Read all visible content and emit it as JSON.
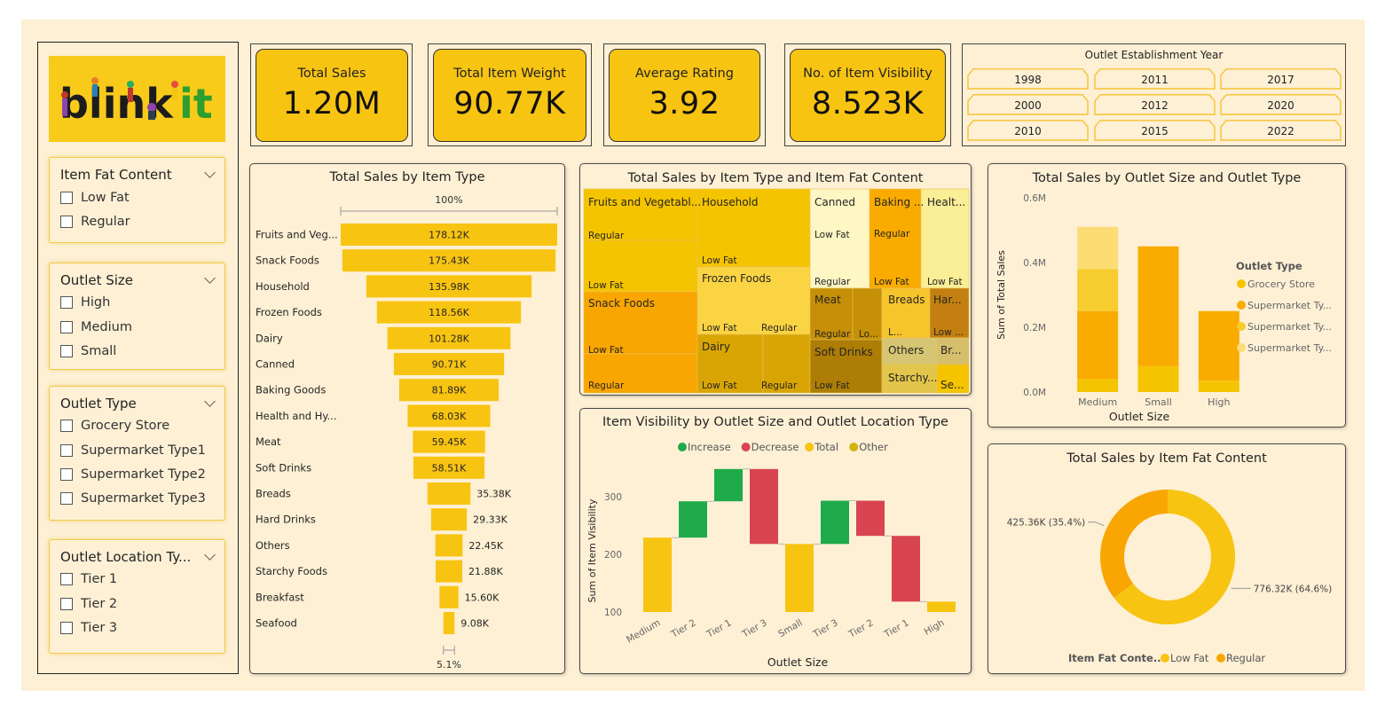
{
  "logo": {
    "text_left": "blink",
    "text_right": "it"
  },
  "filters": [
    {
      "title": "Item Fat Content",
      "options": [
        "Low Fat",
        "Regular"
      ]
    },
    {
      "title": "Outlet Size",
      "options": [
        "High",
        "Medium",
        "Small"
      ]
    },
    {
      "title": "Outlet Type",
      "options": [
        "Grocery Store",
        "Supermarket Type1",
        "Supermarket Type2",
        "Supermarket Type3"
      ]
    },
    {
      "title": "Outlet Location Ty...",
      "options": [
        "Tier 1",
        "Tier 2",
        "Tier 3"
      ]
    }
  ],
  "kpis": [
    {
      "label": "Total Sales",
      "value": "1.20M"
    },
    {
      "label": "Total Item Weight",
      "value": "90.77K"
    },
    {
      "label": "Average Rating",
      "value": "3.92"
    },
    {
      "label": "No. of Item Visibility",
      "value": "8.523K"
    }
  ],
  "year_slicer": {
    "title": "Outlet Establishment Year",
    "years": [
      "1998",
      "2011",
      "2017",
      "2000",
      "2012",
      "2020",
      "2010",
      "2015",
      "2022"
    ]
  },
  "colors": {
    "gold": "#f8c412",
    "amber": "#f9a602",
    "background": "#fdf0d5",
    "increase": "#1faa4b",
    "decrease": "#d8444f"
  },
  "chart_data": [
    {
      "id": "funnel",
      "type": "bar",
      "title": "Total Sales by Item Type",
      "top_label": "100%",
      "bottom_label": "5.1%",
      "categories": [
        "Fruits and Veg...",
        "Snack Foods",
        "Household",
        "Frozen Foods",
        "Dairy",
        "Canned",
        "Baking Goods",
        "Health and Hy...",
        "Meat",
        "Soft Drinks",
        "Breads",
        "Hard Drinks",
        "Others",
        "Starchy Foods",
        "Breakfast",
        "Seafood"
      ],
      "values": [
        178.12,
        175.43,
        135.98,
        118.56,
        101.28,
        90.71,
        81.89,
        68.03,
        59.45,
        58.51,
        35.38,
        29.33,
        22.45,
        21.88,
        15.6,
        9.08
      ],
      "labels": [
        "178.12K",
        "175.43K",
        "135.98K",
        "118.56K",
        "101.28K",
        "90.71K",
        "81.89K",
        "68.03K",
        "59.45K",
        "58.51K",
        "35.38K",
        "29.33K",
        "22.45K",
        "21.88K",
        "15.60K",
        "9.08K"
      ]
    },
    {
      "id": "treemap",
      "type": "table",
      "title": "Total Sales by Item Type and Item Fat Content",
      "labels": [
        "Fruits and Vegetabl...",
        "Regular",
        "Low Fat",
        "Snack Foods",
        "Low Fat",
        "Regular",
        "Household",
        "Low Fat",
        "Frozen Foods",
        "Low Fat",
        "Regular",
        "Dairy",
        "Low Fat",
        "Regular",
        "Canned",
        "Low Fat",
        "Regular",
        "Baking ...",
        "Regular",
        "Low Fat",
        "Healt...",
        "Low Fat",
        "Meat",
        "Regular",
        "Lo...",
        "Breads",
        "L...",
        "Har...",
        "Low ...",
        "Soft Drinks",
        "Low Fat",
        "Others",
        "Br...",
        "Starchy...",
        "Se..."
      ]
    },
    {
      "id": "outlet_stack",
      "type": "bar",
      "title": "Total Sales by Outlet Size and Outlet Type",
      "xlabel": "Outlet Size",
      "ylabel": "Sum of Total Sales",
      "categories": [
        "Medium",
        "Small",
        "High"
      ],
      "ylim": [
        0,
        0.6
      ],
      "yticks": [
        "0.0M",
        "0.2M",
        "0.4M",
        "0.6M"
      ],
      "legend_title": "Outlet Type",
      "legend_position": "right",
      "series": [
        {
          "name": "Grocery Store",
          "color": "#f5c400",
          "values": [
            0.04,
            0.08,
            0.035
          ]
        },
        {
          "name": "Supermarket Ty...",
          "color": "#f9ab00",
          "values": [
            0.21,
            0.37,
            0.215
          ]
        },
        {
          "name": "Supermarket Ty...",
          "color": "#f7cc2e",
          "values": [
            0.13,
            0,
            0
          ]
        },
        {
          "name": "Supermarket Ty...",
          "color": "#fbdd74",
          "values": [
            0.13,
            0,
            0
          ]
        }
      ]
    },
    {
      "id": "waterfall",
      "type": "bar",
      "title": "Item Visibility by Outlet Size and Outlet Location Type",
      "xlabel": "Outlet Size",
      "ylabel": "Sum of Item Visibility",
      "legend": [
        "Increase",
        "Decrease",
        "Total",
        "Other"
      ],
      "categories": [
        "Medium",
        "Tier 2",
        "Tier 1",
        "Tier 3",
        "Small",
        "Tier 3",
        "Tier 2",
        "Tier 1",
        "High"
      ],
      "yticks": [
        100,
        200,
        300
      ],
      "bars": [
        {
          "kind": "total",
          "start": 100,
          "end": 229
        },
        {
          "kind": "increase",
          "start": 229,
          "end": 292
        },
        {
          "kind": "increase",
          "start": 292,
          "end": 348
        },
        {
          "kind": "decrease",
          "start": 348,
          "end": 218
        },
        {
          "kind": "total",
          "start": 100,
          "end": 218
        },
        {
          "kind": "increase",
          "start": 218,
          "end": 293
        },
        {
          "kind": "decrease",
          "start": 293,
          "end": 232
        },
        {
          "kind": "decrease",
          "start": 232,
          "end": 118
        },
        {
          "kind": "total",
          "start": 100,
          "end": 118
        }
      ]
    },
    {
      "id": "donut",
      "type": "pie",
      "title": "Total Sales by Item Fat Content",
      "legend_title": "Item Fat Conte...",
      "legend_position": "bottom",
      "slices": [
        {
          "name": "Low Fat",
          "value": 776.32,
          "label": "776.32K (64.6%)",
          "color": "#f8c412"
        },
        {
          "name": "Regular",
          "value": 425.36,
          "label": "425.36K (35.4%)",
          "color": "#f9a602"
        }
      ]
    }
  ]
}
